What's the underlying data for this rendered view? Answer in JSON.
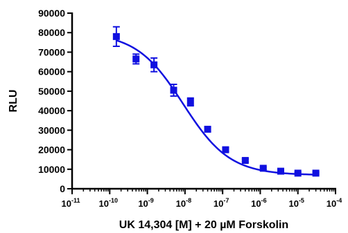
{
  "chart_data": {
    "type": "scatter",
    "title": "",
    "xlabel": "UK 14,304 [M] + 20 µM Forskolin",
    "ylabel": "RLU",
    "xscale": "log",
    "xlim": [
      1e-11,
      0.0001
    ],
    "ylim": [
      0,
      90000
    ],
    "grid": false,
    "legend": "none",
    "marker": "square",
    "color": "#1010e0",
    "yticks": [
      0,
      10000,
      20000,
      30000,
      40000,
      50000,
      60000,
      70000,
      80000,
      90000
    ],
    "ytick_labels": [
      "0",
      "10000",
      "20000",
      "30000",
      "40000",
      "50000",
      "60000",
      "70000",
      "80000",
      "90000"
    ],
    "xticks": [
      {
        "value": 1e-11,
        "base": "10",
        "exp": "-11"
      },
      {
        "value": 1e-10,
        "base": "10",
        "exp": "-10"
      },
      {
        "value": 1e-09,
        "base": "10",
        "exp": "-9"
      },
      {
        "value": 1e-08,
        "base": "10",
        "exp": "-8"
      },
      {
        "value": 1e-07,
        "base": "10",
        "exp": "-7"
      },
      {
        "value": 1e-06,
        "base": "10",
        "exp": "-6"
      },
      {
        "value": 1e-05,
        "base": "10",
        "exp": "-5"
      },
      {
        "value": 0.0001,
        "base": "10",
        "exp": "-4"
      }
    ],
    "points": [
      {
        "x": 1.5e-10,
        "y": 78000,
        "err": 5000
      },
      {
        "x": 5e-10,
        "y": 66500,
        "err": 2500
      },
      {
        "x": 1.5e-09,
        "y": 63500,
        "err": 3500
      },
      {
        "x": 5e-09,
        "y": 50500,
        "err": 3000
      },
      {
        "x": 1.4e-08,
        "y": 44500,
        "err": 2000
      },
      {
        "x": 4e-08,
        "y": 30500,
        "err": 1000
      },
      {
        "x": 1.2e-07,
        "y": 20000,
        "err": 1000
      },
      {
        "x": 4e-07,
        "y": 14500,
        "err": 800
      },
      {
        "x": 1.2e-06,
        "y": 10500,
        "err": 600
      },
      {
        "x": 3.5e-06,
        "y": 9000,
        "err": 500
      },
      {
        "x": 1e-05,
        "y": 8000,
        "err": 500
      },
      {
        "x": 3e-05,
        "y": 8000,
        "err": 500
      }
    ],
    "fit": {
      "bottom": 7000,
      "top": 80000,
      "log_ic50": -8.05,
      "hill_slope": -0.7,
      "x_range": [
        1.5e-10,
        3e-05
      ]
    }
  }
}
